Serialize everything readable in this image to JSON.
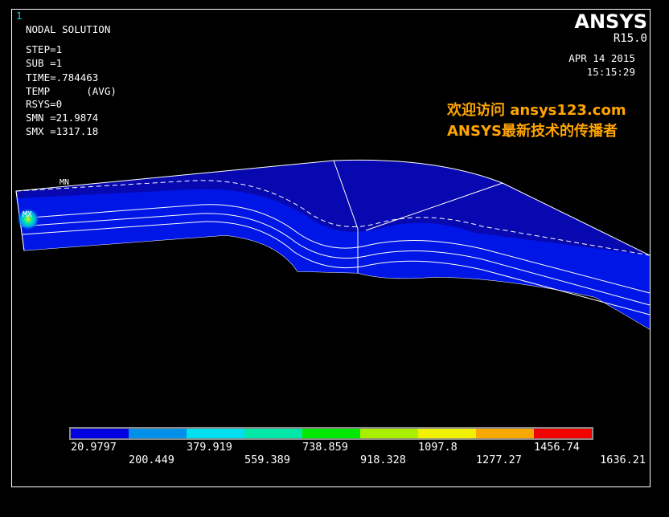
{
  "window_number": "1",
  "info": [
    "NODAL SOLUTION",
    "STEP=1",
    "SUB =1",
    "TIME=.784463",
    "TEMP      (AVG)",
    "RSYS=0",
    "SMN =21.9874",
    "SMX =1317.18"
  ],
  "brand": {
    "name": "ANSYS",
    "release": "R15.0",
    "date": "APR 14 2015",
    "time": "15:15:29"
  },
  "watermark": [
    "欢迎访问 ansys123.com",
    "ANSYS最新技术的传播者"
  ],
  "markers": {
    "min": "MN",
    "max": "MX"
  },
  "legend": {
    "colors": [
      "#0000e0",
      "#0090e8",
      "#00e0f0",
      "#00e8a8",
      "#00e800",
      "#a8f000",
      "#f0f000",
      "#f8a800",
      "#f00000"
    ],
    "labels": [
      "20.9797",
      "200.449",
      "379.919",
      "559.389",
      "738.859",
      "918.328",
      "1097.8",
      "1277.27",
      "1456.74",
      "1636.21"
    ]
  }
}
